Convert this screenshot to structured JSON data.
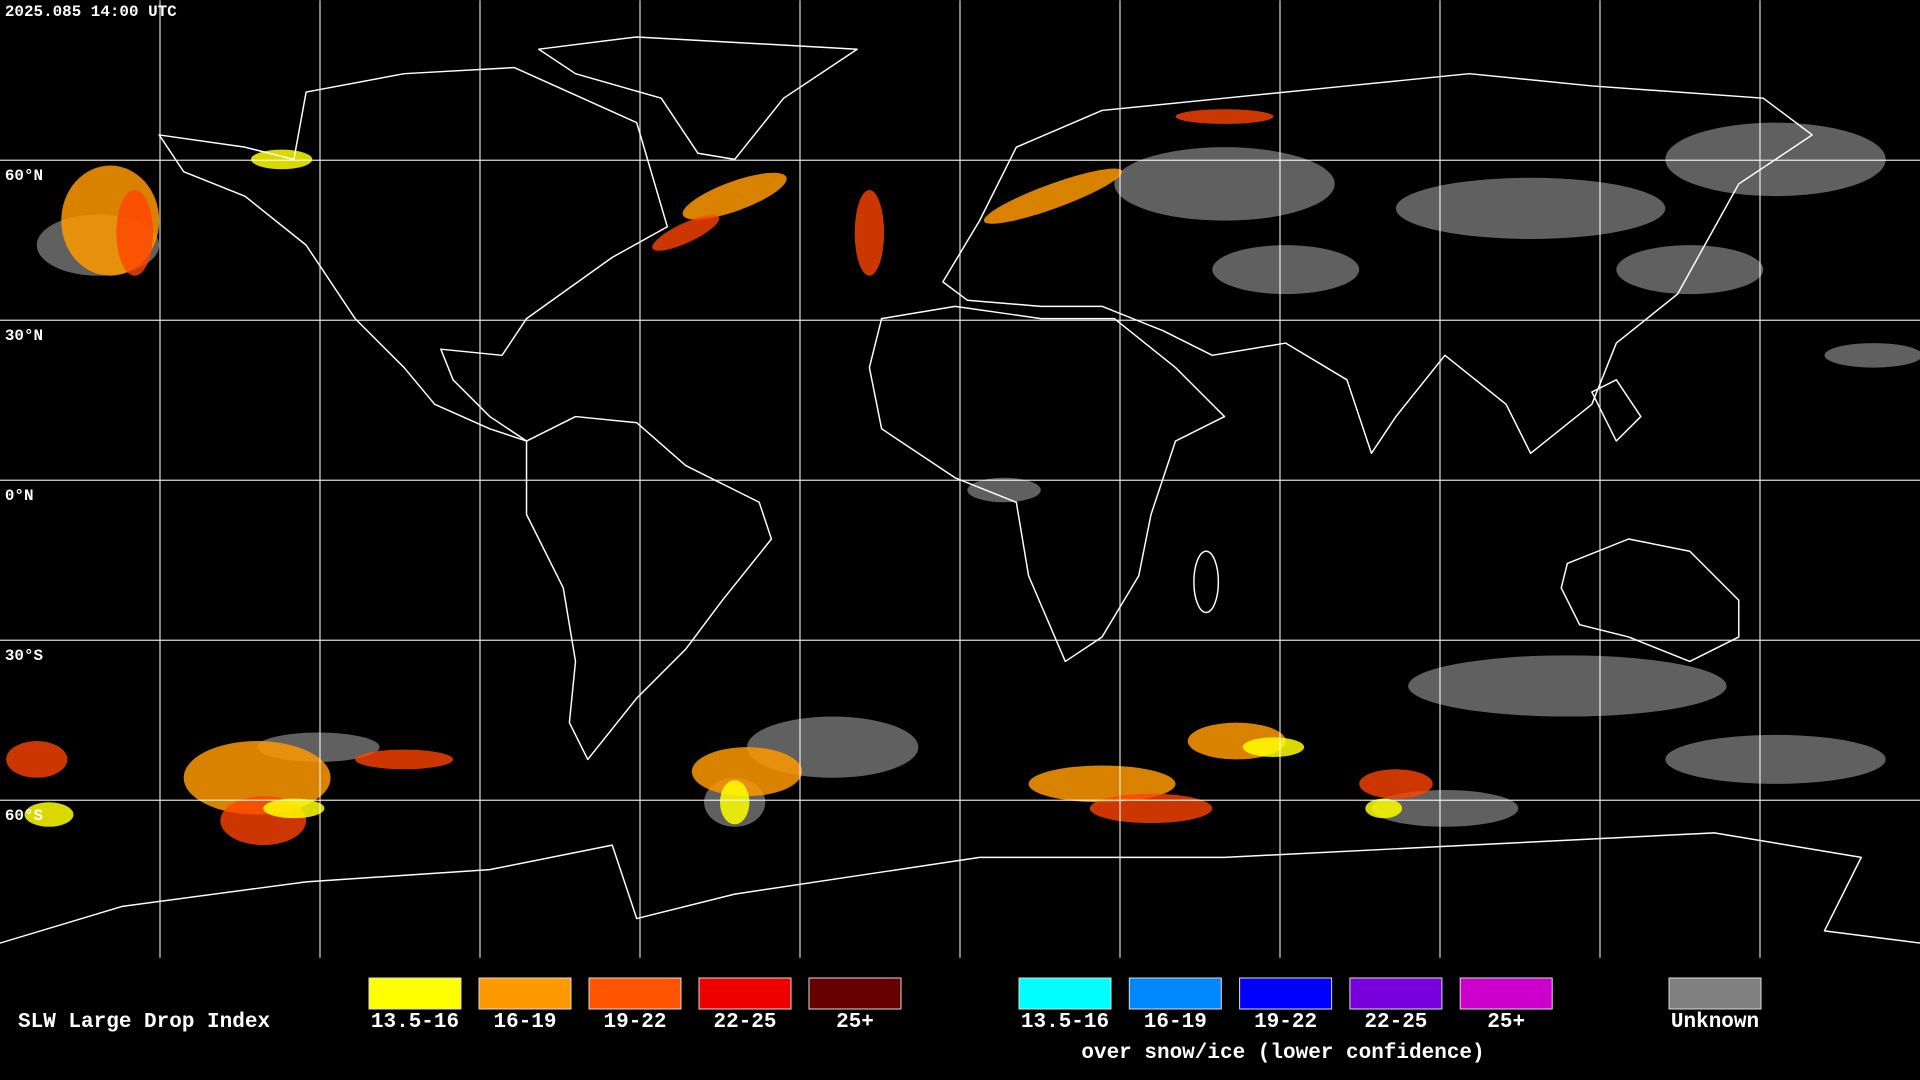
{
  "timestamp": "2025.085 14:00 UTC",
  "grid_labels": [
    "60°N",
    "30°N",
    "0°N",
    "30°S",
    "60°S"
  ],
  "legend": {
    "title": "SLW Large Drop Index",
    "liquid": [
      {
        "label": "13.5-16",
        "color": "#ffff00"
      },
      {
        "label": "16-19",
        "color": "#ff9900"
      },
      {
        "label": "19-22",
        "color": "#ff5500"
      },
      {
        "label": "22-25",
        "color": "#ee0000"
      },
      {
        "label": "25+",
        "color": "#660000"
      }
    ],
    "snow_ice": [
      {
        "label": "13.5-16",
        "color": "#00ffff"
      },
      {
        "label": "16-19",
        "color": "#0088ff"
      },
      {
        "label": "19-22",
        "color": "#0000ff"
      },
      {
        "label": "22-25",
        "color": "#7700dd"
      },
      {
        "label": "25+",
        "color": "#cc00cc"
      }
    ],
    "snow_ice_caption": "over snow/ice (lower confidence)",
    "unknown": {
      "label": "Unknown",
      "color": "#808080"
    }
  }
}
